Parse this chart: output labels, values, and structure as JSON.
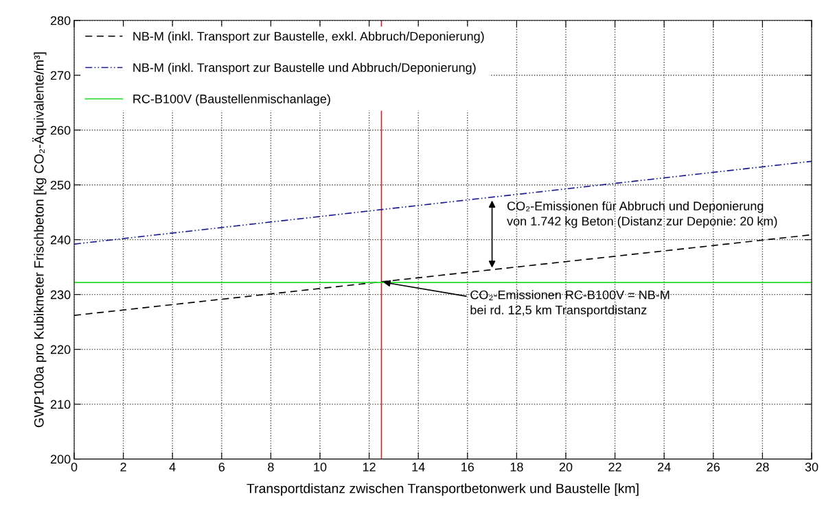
{
  "chart_data": {
    "type": "line",
    "xlabel": "Transportdistanz zwischen Transportbetonwerk und Baustelle [km]",
    "ylabel": "GWP100a pro Kubikmeter Frischbeton [kg CO₂-Äquivalente/m³]",
    "x": [
      0,
      30
    ],
    "series": [
      {
        "name": "NB-M (inkl. Transport zur Baustelle, exkl. Abbruch/Deponierung)",
        "color": "#000000",
        "line_style": "dashed",
        "values": [
          226.2,
          240.9
        ]
      },
      {
        "name": "NB-M (inkl. Transport zur Baustelle und Abbruch/Deponierung)",
        "color": "#1a1a8c",
        "line_style": "dashdot",
        "values": [
          239.2,
          254.3
        ]
      },
      {
        "name": "RC-B100V (Baustellenmischanlage)",
        "color": "#22dd22",
        "line_style": "solid",
        "values": [
          232.2,
          232.2
        ]
      }
    ],
    "xlim": [
      0,
      30
    ],
    "xticks": [
      0,
      2,
      4,
      6,
      8,
      10,
      12,
      14,
      16,
      18,
      20,
      22,
      24,
      26,
      28,
      30
    ],
    "ylim": [
      200,
      280
    ],
    "yticks": [
      200,
      210,
      220,
      230,
      240,
      250,
      260,
      270,
      280
    ],
    "ref_lines": [
      {
        "axis": "x",
        "value": 12.5,
        "color": "#dd2222"
      }
    ],
    "annotations": [
      {
        "text": "CO₂-Emissionen für Abbruch und Deponierung\nvon 1.742 kg Beton (Distanz zur Deponie: 20 km)",
        "x": 17,
        "y": 247.5
      },
      {
        "text": "CO₂-Emissionen RC-B100V = NB-M\nbei rd. 12,5 km Transportdistanz",
        "x": 12.5,
        "y": 232.3
      }
    ],
    "grid": true,
    "legend": "top left",
    "marker": "none"
  }
}
